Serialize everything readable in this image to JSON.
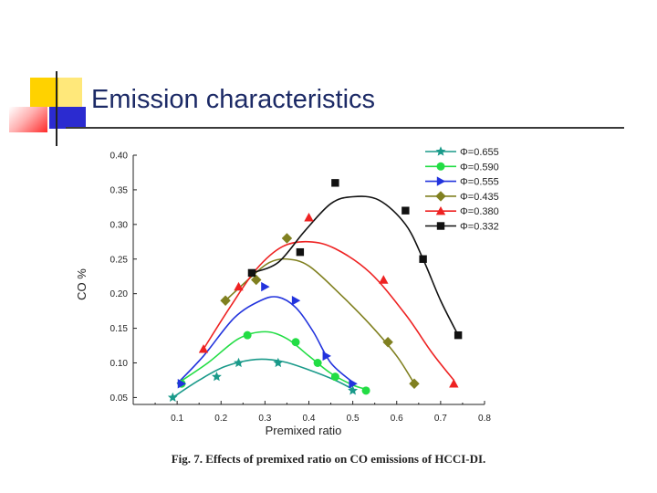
{
  "slide": {
    "title": "Emission characteristics",
    "caption": "Fig. 7. Effects of premixed ratio on CO emissions of HCCI-DI."
  },
  "colors": {
    "title": "#1c2a66",
    "deco_yellow": "#ffd200",
    "deco_blue": "#2b2bd0",
    "deco_red": "#ff2a2a"
  },
  "chart_data": {
    "type": "scatter",
    "xlabel": "Premixed ratio",
    "ylabel": "CO  %",
    "xlim": [
      0.0,
      0.8
    ],
    "ylim": [
      0.04,
      0.4
    ],
    "xticks": [
      "0.1",
      "0.2",
      "0.3",
      "0.4",
      "0.5",
      "0.6",
      "0.7",
      "0.8"
    ],
    "yticks": [
      "0.05",
      "0.10",
      "0.15",
      "0.20",
      "0.25",
      "0.30",
      "0.35",
      "0.40"
    ],
    "legend_position": "top-right",
    "grid": false,
    "series": [
      {
        "name": "Φ=0.655",
        "color": "#1a9a8a",
        "marker": "star",
        "points": [
          [
            0.09,
            0.05
          ],
          [
            0.19,
            0.08
          ],
          [
            0.24,
            0.1
          ],
          [
            0.33,
            0.1
          ],
          [
            0.5,
            0.06
          ]
        ],
        "curve": [
          [
            0.09,
            0.05
          ],
          [
            0.15,
            0.075
          ],
          [
            0.21,
            0.095
          ],
          [
            0.28,
            0.105
          ],
          [
            0.34,
            0.102
          ],
          [
            0.4,
            0.09
          ],
          [
            0.46,
            0.075
          ],
          [
            0.5,
            0.062
          ]
        ]
      },
      {
        "name": "Φ=0.590",
        "color": "#22dd44",
        "marker": "circle",
        "points": [
          [
            0.11,
            0.07
          ],
          [
            0.26,
            0.14
          ],
          [
            0.37,
            0.13
          ],
          [
            0.42,
            0.1
          ],
          [
            0.46,
            0.08
          ],
          [
            0.53,
            0.06
          ]
        ],
        "curve": [
          [
            0.1,
            0.07
          ],
          [
            0.17,
            0.1
          ],
          [
            0.24,
            0.135
          ],
          [
            0.3,
            0.145
          ],
          [
            0.35,
            0.135
          ],
          [
            0.4,
            0.11
          ],
          [
            0.45,
            0.085
          ],
          [
            0.5,
            0.068
          ],
          [
            0.53,
            0.062
          ]
        ]
      },
      {
        "name": "Φ=0.555",
        "color": "#2233dd",
        "marker": "triangle-right",
        "points": [
          [
            0.11,
            0.07
          ],
          [
            0.3,
            0.21
          ],
          [
            0.37,
            0.19
          ],
          [
            0.44,
            0.11
          ],
          [
            0.5,
            0.07
          ]
        ],
        "curve": [
          [
            0.1,
            0.07
          ],
          [
            0.16,
            0.11
          ],
          [
            0.23,
            0.165
          ],
          [
            0.29,
            0.19
          ],
          [
            0.33,
            0.195
          ],
          [
            0.37,
            0.18
          ],
          [
            0.41,
            0.145
          ],
          [
            0.45,
            0.1
          ],
          [
            0.5,
            0.072
          ]
        ]
      },
      {
        "name": "Φ=0.435",
        "color": "#808020",
        "marker": "diamond",
        "points": [
          [
            0.21,
            0.19
          ],
          [
            0.28,
            0.22
          ],
          [
            0.35,
            0.28
          ],
          [
            0.58,
            0.13
          ],
          [
            0.64,
            0.07
          ]
        ],
        "curve": [
          [
            0.21,
            0.19
          ],
          [
            0.27,
            0.225
          ],
          [
            0.31,
            0.245
          ],
          [
            0.35,
            0.25
          ],
          [
            0.4,
            0.24
          ],
          [
            0.47,
            0.2
          ],
          [
            0.54,
            0.155
          ],
          [
            0.6,
            0.11
          ],
          [
            0.64,
            0.07
          ]
        ]
      },
      {
        "name": "Φ=0.380",
        "color": "#ee2222",
        "marker": "triangle-up",
        "points": [
          [
            0.16,
            0.12
          ],
          [
            0.24,
            0.21
          ],
          [
            0.4,
            0.31
          ],
          [
            0.57,
            0.22
          ],
          [
            0.73,
            0.07
          ]
        ],
        "curve": [
          [
            0.16,
            0.12
          ],
          [
            0.22,
            0.18
          ],
          [
            0.28,
            0.235
          ],
          [
            0.34,
            0.268
          ],
          [
            0.4,
            0.275
          ],
          [
            0.46,
            0.265
          ],
          [
            0.54,
            0.23
          ],
          [
            0.62,
            0.17
          ],
          [
            0.68,
            0.115
          ],
          [
            0.73,
            0.075
          ]
        ]
      },
      {
        "name": "Φ=0.332",
        "color": "#111111",
        "marker": "square",
        "points": [
          [
            0.27,
            0.23
          ],
          [
            0.38,
            0.26
          ],
          [
            0.46,
            0.36
          ],
          [
            0.62,
            0.32
          ],
          [
            0.66,
            0.25
          ],
          [
            0.74,
            0.14
          ]
        ],
        "curve": [
          [
            0.27,
            0.23
          ],
          [
            0.33,
            0.245
          ],
          [
            0.39,
            0.29
          ],
          [
            0.45,
            0.33
          ],
          [
            0.5,
            0.34
          ],
          [
            0.56,
            0.335
          ],
          [
            0.62,
            0.3
          ],
          [
            0.66,
            0.25
          ],
          [
            0.7,
            0.19
          ],
          [
            0.74,
            0.14
          ]
        ]
      }
    ]
  }
}
